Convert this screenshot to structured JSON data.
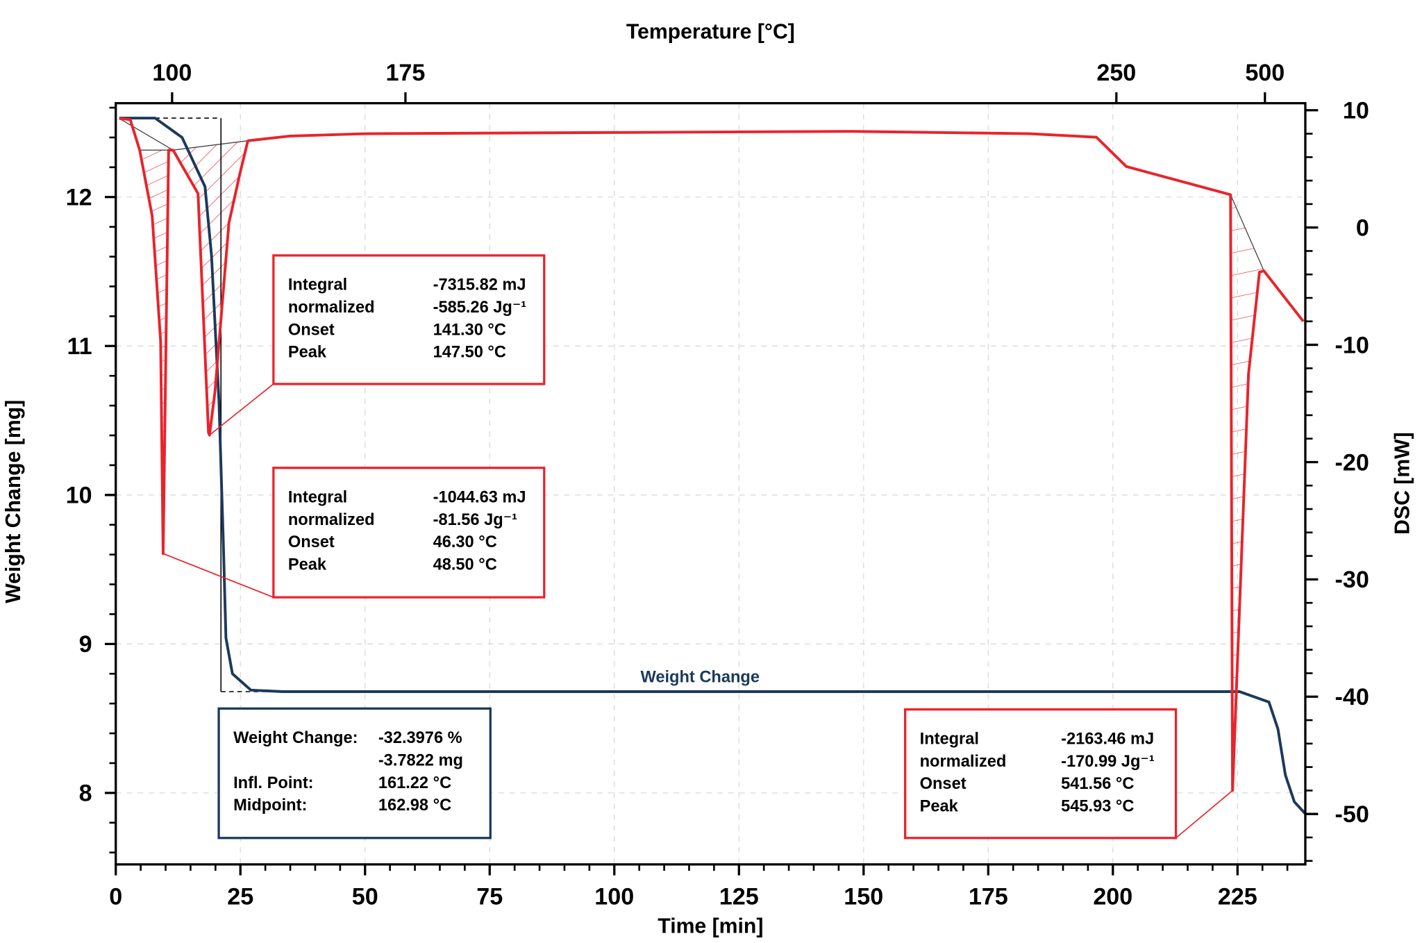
{
  "chart_data": {
    "type": "line",
    "title": "",
    "xlabel": "Time [min]",
    "ylabel_left": "Weight Change [mg]",
    "ylabel_right": "DSC [mW]",
    "xlabel_top": "Temperature [°C]",
    "xlim": [
      0,
      238.6
    ],
    "ylim_left": [
      7.52,
      12.63
    ],
    "ylim_right": [
      -54.3,
      10.6
    ],
    "grid": true,
    "x_ticks": [
      "0",
      "25",
      "50",
      "75",
      "100",
      "125",
      "150",
      "175",
      "200",
      "225"
    ],
    "y_left_ticks": [
      "8",
      "9",
      "10",
      "11",
      "12"
    ],
    "y_right_ticks": [
      "10",
      "0",
      "-10",
      "-20",
      "-30",
      "-40",
      "-50"
    ],
    "top_ticks": [
      {
        "label": "100",
        "time": 11.3
      },
      {
        "label": "175",
        "time": 58.1
      },
      {
        "label": "250",
        "time": 200.7
      },
      {
        "label": "500",
        "time": 230.5
      }
    ],
    "series": [
      {
        "name": "Weight Change",
        "axis": "left",
        "color": "#1b3a5c",
        "x": [
          0.7,
          7.9,
          13.3,
          17.9,
          19.2,
          20.7,
          21.6,
          22.1,
          23.4,
          27.1,
          33.5,
          225.4,
          231.3,
          233.1,
          234.6,
          236.4,
          238.6
        ],
        "y": [
          12.53,
          12.53,
          12.4,
          12.07,
          11.61,
          10.63,
          9.65,
          9.04,
          8.8,
          8.69,
          8.68,
          8.68,
          8.61,
          8.43,
          8.12,
          7.94,
          7.86
        ]
      },
      {
        "name": "DSC",
        "axis": "right",
        "color": "#e8242b",
        "x": [
          0.7,
          2.9,
          4.8,
          7.3,
          9.0,
          9.5,
          10.6,
          11.5,
          16.5,
          18.6,
          18.8,
          19.9,
          22.7,
          24.9,
          26.5,
          34.9,
          49.9,
          147.7,
          183.4,
          196.7,
          202.7,
          223.6,
          224.0,
          227.2,
          229.4,
          230.3,
          238.2
        ],
        "y": [
          9.3,
          9.2,
          6.6,
          1.0,
          -9.7,
          -27.8,
          6.6,
          6.6,
          2.9,
          -17.5,
          -17.7,
          -14.0,
          0.4,
          4.6,
          7.4,
          7.8,
          8.0,
          8.2,
          8.0,
          7.7,
          5.2,
          2.8,
          -48.0,
          -12.5,
          -3.8,
          -3.7,
          -8.0
        ]
      }
    ],
    "peaks": [
      {
        "start": 2,
        "end": 7
      },
      {
        "start": 7,
        "end": 14
      },
      {
        "start": 21,
        "end": 25
      }
    ],
    "weight_step": {
      "t_start": 7.9,
      "t_end": 21.1,
      "t_right": 30.5,
      "mg_top": 12.53,
      "mg_bottom": 8.68
    },
    "series_label": "Weight Change",
    "annotations": [
      {
        "lines": [
          [
            "Integral",
            "-7315.82 mJ"
          ],
          [
            "normalized",
            "-585.26 Jg⁻¹"
          ],
          [
            "Onset",
            "141.30 °C"
          ],
          [
            "Peak",
            "147.50 °C"
          ]
        ],
        "color": "#e8242b"
      },
      {
        "lines": [
          [
            "Integral",
            "-1044.63 mJ"
          ],
          [
            "normalized",
            "-81.56 Jg⁻¹"
          ],
          [
            "Onset",
            "46.30 °C"
          ],
          [
            "Peak",
            "48.50 °C"
          ]
        ],
        "color": "#e8242b"
      },
      {
        "lines": [
          [
            "Integral",
            "-2163.46 mJ"
          ],
          [
            "normalized",
            "-170.99 Jg⁻¹"
          ],
          [
            "Onset",
            "541.56 °C"
          ],
          [
            "Peak",
            "545.93 °C"
          ]
        ],
        "color": "#e8242b"
      },
      {
        "lines": [
          [
            "Weight Change:",
            "-32.3976 %"
          ],
          [
            "",
            "-3.7822 mg"
          ],
          [
            "Infl. Point:",
            "161.22 °C"
          ],
          [
            "Midpoint:",
            "162.98 °C"
          ]
        ],
        "color": "#1b3a5c"
      }
    ]
  }
}
